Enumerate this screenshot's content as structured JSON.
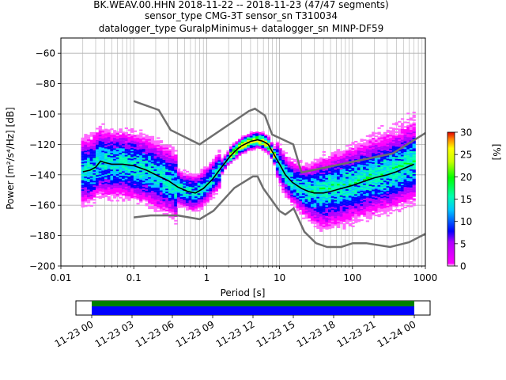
{
  "chart_data": {
    "type": "heatmap",
    "title_lines": [
      "BK.WEAV.00.HHN   2018-11-22 -- 2018-11-23  (47/47 segments)",
      "sensor_type CMG-3T sensor_sn T310034",
      "datalogger_type GuralpMinimus+ datalogger_sn MINP-DF59"
    ],
    "xlabel": "Period [s]",
    "ylabel": "Power [m²/s⁴/Hz] [dB]",
    "xscale": "log",
    "xlim": [
      0.01,
      1000
    ],
    "ylim": [
      -200,
      -50
    ],
    "x_ticks": [
      0.01,
      0.1,
      1,
      10,
      100,
      1000
    ],
    "x_tick_labels": [
      "0.01",
      "0.1",
      "1",
      "10",
      "100",
      "1000"
    ],
    "y_ticks": [
      -200,
      -180,
      -160,
      -140,
      -120,
      -100,
      -80,
      -60
    ],
    "y_tick_labels": [
      "−200",
      "−180",
      "−160",
      "−140",
      "−120",
      "−100",
      "−80",
      "−60"
    ],
    "grid": true,
    "colorbar": {
      "label": "[%]",
      "range": [
        0,
        30
      ],
      "ticks": [
        0,
        5,
        10,
        15,
        20,
        25,
        30
      ],
      "tick_labels": [
        "0",
        "5",
        "10",
        "15",
        "20",
        "25",
        "30"
      ]
    },
    "noise_models": [
      {
        "name": "NHNM",
        "x": [
          0.1,
          0.22,
          0.32,
          0.8,
          3.8,
          4.6,
          6.3,
          7.9,
          15.4,
          20,
          354.8,
          1000
        ],
        "y": [
          -91.5,
          -97.4,
          -110.5,
          -120,
          -98,
          -96.5,
          -101,
          -113.5,
          -120,
          -138.5,
          -126,
          -112.5
        ]
      },
      {
        "name": "NLNM",
        "x": [
          0.1,
          0.17,
          0.4,
          0.8,
          1.24,
          2.4,
          4.3,
          5,
          6,
          10,
          12,
          15.6,
          21.9,
          31.6,
          45,
          70,
          101,
          154,
          328,
          600,
          1000
        ],
        "y": [
          -168,
          -166.7,
          -166.7,
          -169.2,
          -163.7,
          -148.6,
          -141.1,
          -141.1,
          -149,
          -163.8,
          -166.2,
          -162.1,
          -177.5,
          -185,
          -187.5,
          -187.5,
          -185,
          -185,
          -187.5,
          -184.4,
          -178.8
        ]
      }
    ],
    "mean_curve": {
      "x": [
        0.02,
        0.025,
        0.03,
        0.035,
        0.04,
        0.05,
        0.07,
        0.1,
        0.15,
        0.2,
        0.3,
        0.4,
        0.55,
        0.7,
        0.9,
        1.2,
        1.6,
        2,
        2.5,
        3,
        4,
        5,
        6,
        7,
        8,
        10,
        12,
        15,
        20,
        25,
        30,
        40,
        50,
        70,
        100,
        150,
        200,
        300,
        400,
        500,
        700
      ],
      "y": [
        -138,
        -137,
        -135,
        -131,
        -132,
        -133,
        -133,
        -134,
        -137,
        -140,
        -144,
        -148,
        -151,
        -152,
        -149,
        -143,
        -135,
        -129,
        -124,
        -121,
        -118,
        -117,
        -118,
        -120,
        -125,
        -133,
        -140,
        -145,
        -149,
        -151,
        -152,
        -152,
        -151,
        -149,
        -147,
        -144,
        -142,
        -140,
        -138,
        -136,
        -133
      ]
    },
    "timeline": {
      "tick_labels": [
        "11-23 00",
        "11-23 03",
        "11-23 06",
        "11-23 09",
        "11-23 12",
        "11-23 15",
        "11-23 18",
        "11-23 21",
        "11-24 00"
      ],
      "data_color": "#008000",
      "psd_color": "#0000ff"
    }
  }
}
